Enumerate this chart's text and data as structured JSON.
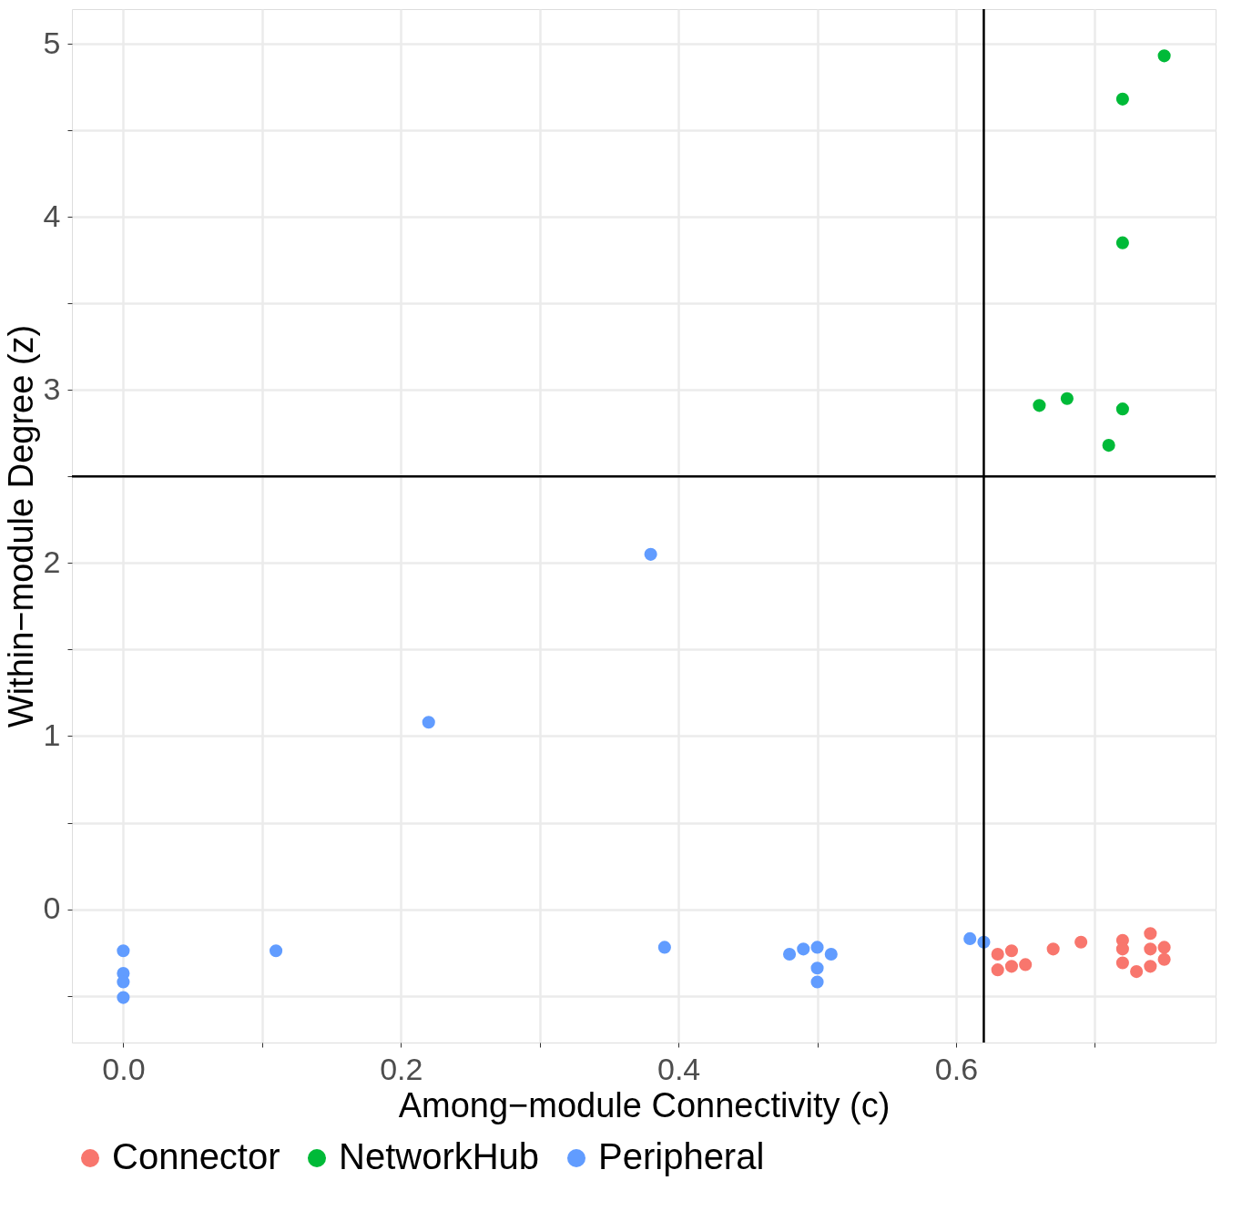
{
  "chart_data": {
    "type": "scatter",
    "xlabel": "Among−module Connectivity (c)",
    "ylabel": "Within−module Degree (z)",
    "xlim": [
      -0.037,
      0.787
    ],
    "ylim": [
      -0.77,
      5.2
    ],
    "xticks": [
      {
        "value": 0,
        "label": "0.0"
      },
      {
        "value": 0.1,
        "label": null
      },
      {
        "value": 0.2,
        "label": "0.2"
      },
      {
        "value": 0.3,
        "label": null
      },
      {
        "value": 0.4,
        "label": "0.4"
      },
      {
        "value": 0.5,
        "label": null
      },
      {
        "value": 0.6,
        "label": "0.6"
      },
      {
        "value": 0.7,
        "label": null
      }
    ],
    "yticks": [
      {
        "value": -0.5,
        "label": null
      },
      0,
      {
        "value": 0.5,
        "label": null
      },
      1,
      {
        "value": 1.5,
        "label": null
      },
      2,
      {
        "value": 2.5,
        "label": null
      },
      3,
      {
        "value": 3.5,
        "label": null
      },
      4,
      {
        "value": 4.5,
        "label": null
      },
      5
    ],
    "grid": true,
    "legend": "bottom",
    "marker": "circle",
    "ref_lines": [
      {
        "axis": "x",
        "value": 0.62,
        "color": "#000000"
      },
      {
        "axis": "y",
        "value": 2.5,
        "color": "#000000"
      }
    ],
    "series": [
      {
        "name": "Connector",
        "color": "#f8766d",
        "x": [
          0.63,
          0.64,
          0.63,
          0.64,
          0.65,
          0.67,
          0.69,
          0.72,
          0.72,
          0.72,
          0.73,
          0.74,
          0.74,
          0.74,
          0.75,
          0.75
        ],
        "values": [
          -0.26,
          -0.24,
          -0.35,
          -0.33,
          -0.32,
          -0.23,
          -0.19,
          -0.18,
          -0.23,
          -0.31,
          -0.36,
          -0.14,
          -0.23,
          -0.33,
          -0.22,
          -0.29
        ]
      },
      {
        "name": "NetworkHub",
        "color": "#00ba38",
        "x": [
          0.75,
          0.72,
          0.72,
          0.66,
          0.68,
          0.72,
          0.71
        ],
        "values": [
          4.93,
          4.68,
          3.85,
          2.91,
          2.95,
          2.89,
          2.68
        ]
      },
      {
        "name": "Peripheral",
        "color": "#619cff",
        "x": [
          0,
          0,
          0,
          0,
          0.11,
          0.38,
          0.22,
          0.39,
          0.48,
          0.49,
          0.5,
          0.51,
          0.5,
          0.5,
          0.61,
          0.62
        ],
        "values": [
          -0.24,
          -0.37,
          -0.42,
          -0.51,
          -0.24,
          2.05,
          1.08,
          -0.22,
          -0.26,
          -0.23,
          -0.22,
          -0.26,
          -0.34,
          -0.42,
          -0.17,
          -0.19
        ]
      }
    ]
  }
}
